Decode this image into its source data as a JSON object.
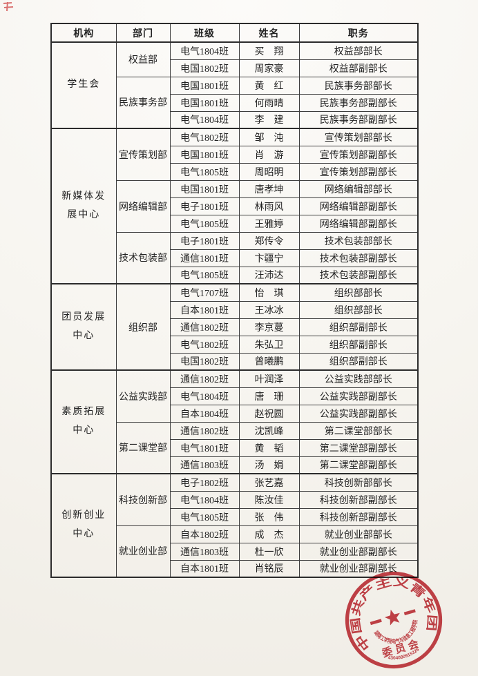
{
  "table": {
    "headers": [
      "机构",
      "部门",
      "班级",
      "姓名",
      "职务"
    ],
    "sections": [
      {
        "org": "学生会",
        "departments": [
          {
            "name": "权益部",
            "members": [
              {
                "clazz": "电气1804班",
                "student": "买　翔",
                "position": "权益部部长"
              },
              {
                "clazz": "电国1802班",
                "student": "周家豪",
                "position": "权益部副部长"
              }
            ]
          },
          {
            "name": "民族事务部",
            "members": [
              {
                "clazz": "电国1801班",
                "student": "黄　红",
                "position": "民族事务部部长"
              },
              {
                "clazz": "电国1801班",
                "student": "何雨晴",
                "position": "民族事务部副部长"
              },
              {
                "clazz": "电气1804班",
                "student": "李　建",
                "position": "民族事务部副部长"
              }
            ]
          }
        ]
      },
      {
        "org": "新媒体发\n展中心",
        "departments": [
          {
            "name": "宣传策划部",
            "members": [
              {
                "clazz": "电气1802班",
                "student": "邹　沌",
                "position": "宣传策划部部长"
              },
              {
                "clazz": "电国1801班",
                "student": "肖　游",
                "position": "宣传策划部副部长"
              },
              {
                "clazz": "电气1805班",
                "student": "周昭明",
                "position": "宣传策划部副部长"
              }
            ]
          },
          {
            "name": "网络编辑部",
            "members": [
              {
                "clazz": "电国1801班",
                "student": "唐孝坤",
                "position": "网络编辑部部长"
              },
              {
                "clazz": "电子1801班",
                "student": "林雨风",
                "position": "网络编辑部副部长"
              },
              {
                "clazz": "电气1805班",
                "student": "王雅婷",
                "position": "网络编辑部副部长"
              }
            ]
          },
          {
            "name": "技术包装部",
            "members": [
              {
                "clazz": "电子1801班",
                "student": "郑传令",
                "position": "技术包装部部长"
              },
              {
                "clazz": "通信1801班",
                "student": "卞疆宁",
                "position": "技术包装部副部长"
              },
              {
                "clazz": "电气1805班",
                "student": "汪沛达",
                "position": "技术包装部副部长"
              }
            ]
          }
        ]
      },
      {
        "org": "团员发展\n中心",
        "departments": [
          {
            "name": "组织部",
            "members": [
              {
                "clazz": "电气1707班",
                "student": "怡　琪",
                "position": "组织部部长"
              },
              {
                "clazz": "自本1801班",
                "student": "王冰冰",
                "position": "组织部部长"
              },
              {
                "clazz": "通信1802班",
                "student": "李京蔓",
                "position": "组织部副部长"
              },
              {
                "clazz": "电气1802班",
                "student": "朱弘卫",
                "position": "组织部副部长"
              },
              {
                "clazz": "电国1802班",
                "student": "曾曦鹏",
                "position": "组织部副部长"
              }
            ]
          }
        ]
      },
      {
        "org": "素质拓展\n中心",
        "departments": [
          {
            "name": "公益实践部",
            "members": [
              {
                "clazz": "通信1802班",
                "student": "叶润泽",
                "position": "公益实践部部长"
              },
              {
                "clazz": "电气1804班",
                "student": "唐　珊",
                "position": "公益实践部副部长"
              },
              {
                "clazz": "自本1804班",
                "student": "赵祝圆",
                "position": "公益实践部副部长"
              }
            ]
          },
          {
            "name": "第二课堂部",
            "members": [
              {
                "clazz": "通信1802班",
                "student": "沈凯峰",
                "position": "第二课堂部部长"
              },
              {
                "clazz": "电气1801班",
                "student": "黄　韬",
                "position": "第二课堂部副部长"
              },
              {
                "clazz": "通信1803班",
                "student": "汤　娟",
                "position": "第二课堂部副部长"
              }
            ]
          }
        ]
      },
      {
        "org": "创新创业\n中心",
        "departments": [
          {
            "name": "科技创新部",
            "members": [
              {
                "clazz": "电子1802班",
                "student": "张艺嘉",
                "position": "科技创新部部长"
              },
              {
                "clazz": "电气1804班",
                "student": "陈汝佳",
                "position": "科技创新部副部长"
              },
              {
                "clazz": "电气1805班",
                "student": "张　伟",
                "position": "科技创新部副部长"
              }
            ]
          },
          {
            "name": "就业创业部",
            "members": [
              {
                "clazz": "自本1802班",
                "student": "成　杰",
                "position": "就业创业部部长"
              },
              {
                "clazz": "通信1803班",
                "student": "杜一欣",
                "position": "就业创业部副部长"
              },
              {
                "clazz": "自本1801班",
                "student": "肖铭辰",
                "position": "就业创业部副部长"
              }
            ]
          }
        ]
      }
    ]
  },
  "seal": {
    "ring_text": "中国共产主义青年团",
    "arc_text": "湖南工学院电气与信息工程学院",
    "committee_text": "委员会",
    "serial_number": "4304080915326",
    "color": "#c2333b"
  }
}
